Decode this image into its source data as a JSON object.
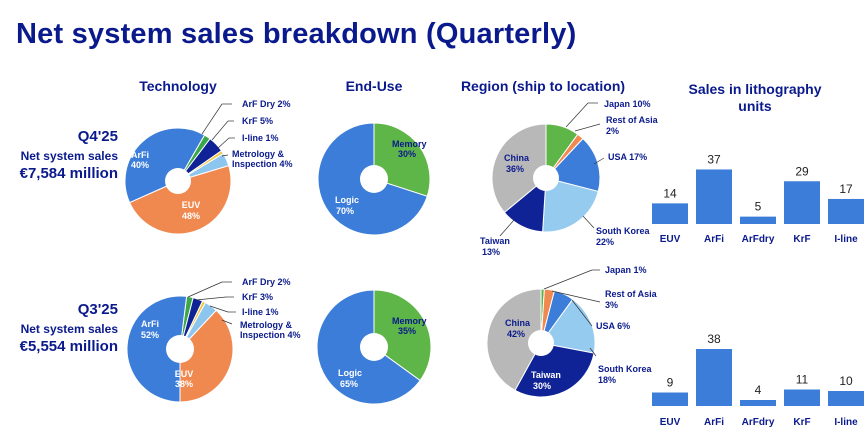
{
  "title": "Net system sales breakdown (Quarterly)",
  "headers": {
    "technology": "Technology",
    "end_use": "End-Use",
    "region": "Region (ship to location)",
    "units_line1": "Sales in lithography",
    "units_line2": "units"
  },
  "periods": [
    {
      "quarter": "Q4'25",
      "label": "Net system sales",
      "amount": "€7,584 million"
    },
    {
      "quarter": "Q3'25",
      "label": "Net system sales",
      "amount": "€5,554 million"
    }
  ],
  "colors": {
    "title": "#0a1a8c",
    "euv": "#f0894f",
    "arfi": "#3c7dd9",
    "arfdry": "#3aa84a",
    "krf": "#0f2296",
    "iline": "#f2c744",
    "metrology": "#8cc6ee",
    "memory": "#5eb548",
    "logic": "#3c7dd9",
    "japan": "#5eb548",
    "rest_of_asia": "#f0894f",
    "usa": "#3c7dd9",
    "south_korea": "#96cbf0",
    "taiwan": "#0f2296",
    "china": "#b8b8b8",
    "bar": "#3c7dd9"
  },
  "chart_data": [
    {
      "type": "pie",
      "title": "Technology",
      "period": "Q4'25",
      "slices": [
        {
          "label": "EUV",
          "value": 48,
          "color_key": "euv"
        },
        {
          "label": "ArFi",
          "value": 40,
          "color_key": "arfi"
        },
        {
          "label": "ArF Dry",
          "value": 2,
          "color_key": "arfdry"
        },
        {
          "label": "KrF",
          "value": 5,
          "color_key": "krf"
        },
        {
          "label": "I-line",
          "value": 1,
          "color_key": "iline"
        },
        {
          "label": "Metrology & Inspection",
          "value": 4,
          "color_key": "metrology"
        }
      ],
      "labels": {
        "arfi_name": "ArFi",
        "arfi_pct": "40%",
        "euv_name": "EUV",
        "euv_pct": "48%",
        "arfdry": "ArF Dry 2%",
        "krf": "KrF 5%",
        "iline": "I-line 1%",
        "metro1": "Metrology &",
        "metro2": "Inspection 4%"
      }
    },
    {
      "type": "pie",
      "title": "End-Use",
      "period": "Q4'25",
      "slices": [
        {
          "label": "Memory",
          "value": 30,
          "color_key": "memory"
        },
        {
          "label": "Logic",
          "value": 70,
          "color_key": "logic"
        }
      ],
      "labels": {
        "memory_name": "Memory",
        "memory_pct": "30%",
        "logic_name": "Logic",
        "logic_pct": "70%"
      }
    },
    {
      "type": "pie",
      "title": "Region (ship to location)",
      "period": "Q4'25",
      "slices": [
        {
          "label": "Japan",
          "value": 10,
          "color_key": "japan"
        },
        {
          "label": "Rest of Asia",
          "value": 2,
          "color_key": "rest_of_asia"
        },
        {
          "label": "USA",
          "value": 17,
          "color_key": "usa"
        },
        {
          "label": "South Korea",
          "value": 22,
          "color_key": "south_korea"
        },
        {
          "label": "Taiwan",
          "value": 13,
          "color_key": "taiwan"
        },
        {
          "label": "China",
          "value": 36,
          "color_key": "china"
        }
      ],
      "labels": {
        "japan": "Japan 10%",
        "roa1": "Rest of Asia",
        "roa2": "2%",
        "usa": "USA 17%",
        "sk1": "South Korea",
        "sk2": "22%",
        "tw1": "Taiwan",
        "tw2": "13%",
        "china_name": "China",
        "china_pct": "36%"
      }
    },
    {
      "type": "bar",
      "title": "Sales in lithography units",
      "period": "Q4'25",
      "categories": [
        "EUV",
        "ArFi",
        "ArFdry",
        "KrF",
        "I-line"
      ],
      "values": [
        14,
        37,
        5,
        29,
        17
      ],
      "ylim": [
        0,
        38
      ]
    },
    {
      "type": "pie",
      "title": "Technology",
      "period": "Q3'25",
      "slices": [
        {
          "label": "EUV",
          "value": 38,
          "color_key": "euv"
        },
        {
          "label": "ArFi",
          "value": 52,
          "color_key": "arfi"
        },
        {
          "label": "ArF Dry",
          "value": 2,
          "color_key": "arfdry"
        },
        {
          "label": "KrF",
          "value": 3,
          "color_key": "krf"
        },
        {
          "label": "I-line",
          "value": 1,
          "color_key": "iline"
        },
        {
          "label": "Metrology & Inspection",
          "value": 4,
          "color_key": "metrology"
        }
      ],
      "labels": {
        "arfi_name": "ArFi",
        "arfi_pct": "52%",
        "euv_name": "EUV",
        "euv_pct": "38%",
        "arfdry": "ArF Dry 2%",
        "krf": "KrF 3%",
        "iline": "I-line 1%",
        "metro1": "Metrology &",
        "metro2": "Inspection 4%"
      }
    },
    {
      "type": "pie",
      "title": "End-Use",
      "period": "Q3'25",
      "slices": [
        {
          "label": "Memory",
          "value": 35,
          "color_key": "memory"
        },
        {
          "label": "Logic",
          "value": 65,
          "color_key": "logic"
        }
      ],
      "labels": {
        "memory_name": "Memory",
        "memory_pct": "35%",
        "logic_name": "Logic",
        "logic_pct": "65%"
      }
    },
    {
      "type": "pie",
      "title": "Region (ship to location)",
      "period": "Q3'25",
      "slices": [
        {
          "label": "Japan",
          "value": 1,
          "color_key": "japan"
        },
        {
          "label": "Rest of Asia",
          "value": 3,
          "color_key": "rest_of_asia"
        },
        {
          "label": "USA",
          "value": 6,
          "color_key": "usa"
        },
        {
          "label": "South Korea",
          "value": 18,
          "color_key": "south_korea"
        },
        {
          "label": "Taiwan",
          "value": 30,
          "color_key": "taiwan"
        },
        {
          "label": "China",
          "value": 42,
          "color_key": "china"
        }
      ],
      "labels": {
        "japan": "Japan 1%",
        "roa1": "Rest of Asia",
        "roa2": "3%",
        "usa": "USA 6%",
        "sk1": "South Korea",
        "sk2": "18%",
        "tw1": "Taiwan",
        "tw2": "30%",
        "china_name": "China",
        "china_pct": "42%"
      }
    },
    {
      "type": "bar",
      "title": "Sales in lithography units",
      "period": "Q3'25",
      "categories": [
        "EUV",
        "ArFi",
        "ArFdry",
        "KrF",
        "I-line"
      ],
      "values": [
        9,
        38,
        4,
        11,
        10
      ],
      "ylim": [
        0,
        38
      ]
    }
  ]
}
